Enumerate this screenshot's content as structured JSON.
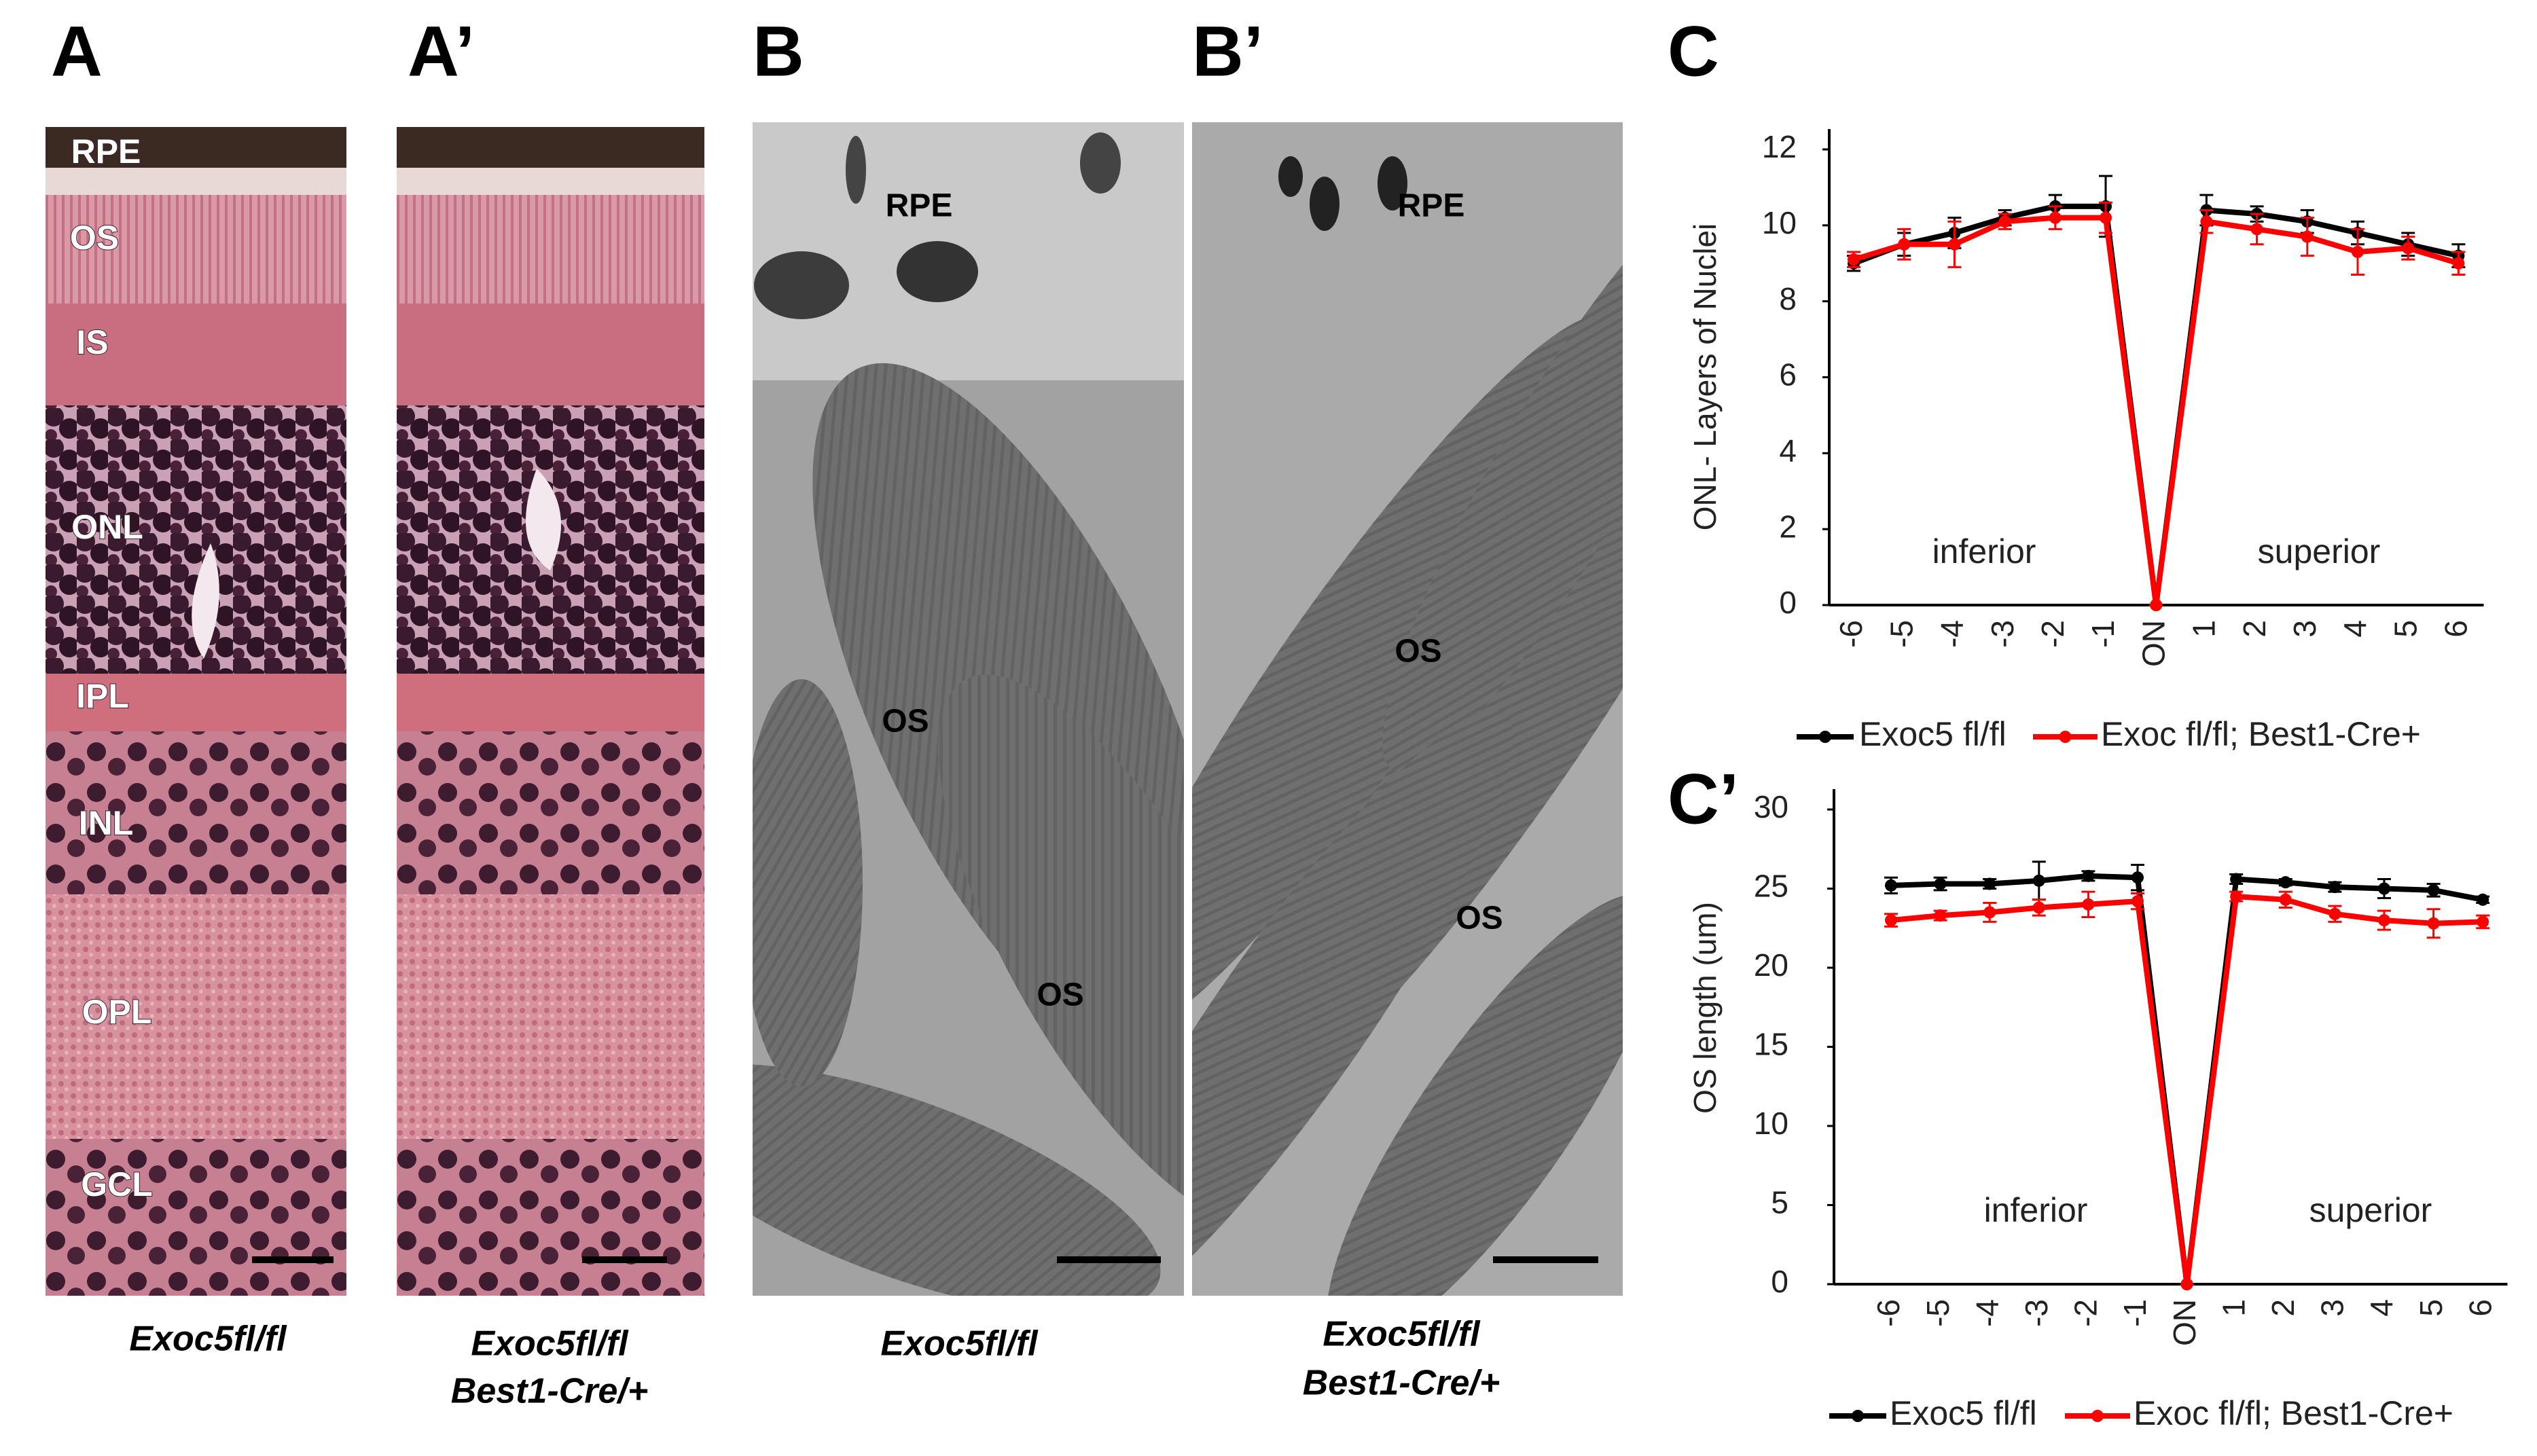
{
  "figure": {
    "panel_labels": [
      "A",
      "A’",
      "B",
      "B’",
      "C",
      "C’"
    ],
    "layer_labels_A": [
      "RPE",
      "OS",
      "IS",
      "ONL",
      "IPL",
      "INL",
      "OPL",
      "GCL"
    ],
    "labels_B": [
      "RPE",
      "OS",
      "OS"
    ],
    "labels_B_prime": [
      "RPE",
      "OS",
      "OS"
    ],
    "caption_A": "Exoc5fl/fl",
    "caption_A_prime": [
      "Exoc5fl/fl",
      "Best1-Cre/+"
    ],
    "caption_B": "Exoc5fl/fl",
    "caption_B_prime": [
      "Exoc5fl/fl",
      "Best1-Cre/+"
    ]
  },
  "chart_data": [
    {
      "type": "line",
      "ylabel": "ONL- Layers of Nuclei",
      "categories": [
        "-6",
        "-5",
        "-4",
        "-3",
        "-2",
        "-1",
        "ON",
        "1",
        "2",
        "3",
        "4",
        "5",
        "6"
      ],
      "annotations": [
        "inferior",
        "superior"
      ],
      "ylim": [
        0,
        12
      ],
      "yticks": [
        0,
        2,
        4,
        6,
        8,
        10,
        12
      ],
      "series": [
        {
          "name": "Exoc5 fl/fl",
          "color": "#000000",
          "values": [
            9.0,
            9.5,
            9.8,
            10.2,
            10.5,
            10.5,
            0,
            10.4,
            10.3,
            10.1,
            9.8,
            9.5,
            9.2
          ],
          "errors": [
            0.2,
            0.3,
            0.4,
            0.2,
            0.3,
            0.8,
            0,
            0.4,
            0.2,
            0.3,
            0.3,
            0.3,
            0.3
          ]
        },
        {
          "name": "Exoc fl/fl; Best1-Cre+",
          "color": "#ff0000",
          "values": [
            9.1,
            9.5,
            9.5,
            10.1,
            10.2,
            10.2,
            0,
            10.1,
            9.9,
            9.7,
            9.3,
            9.4,
            9.0
          ],
          "errors": [
            0.2,
            0.4,
            0.6,
            0.2,
            0.3,
            0.4,
            0,
            0.3,
            0.4,
            0.5,
            0.6,
            0.3,
            0.3
          ]
        }
      ]
    },
    {
      "type": "line",
      "ylabel": "OS length (um)",
      "categories": [
        "-6",
        "-5",
        "-4",
        "-3",
        "-2",
        "-1",
        "ON",
        "1",
        "2",
        "3",
        "4",
        "5",
        "6"
      ],
      "annotations": [
        "inferior",
        "superior"
      ],
      "ylim": [
        0,
        30
      ],
      "yticks": [
        0,
        5,
        10,
        15,
        20,
        25,
        30
      ],
      "series": [
        {
          "name": "Exoc5 fl/fl",
          "color": "#000000",
          "values": [
            25.2,
            25.3,
            25.3,
            25.5,
            25.8,
            25.7,
            0,
            25.6,
            25.4,
            25.1,
            25.0,
            24.9,
            24.3
          ],
          "errors": [
            0.5,
            0.4,
            0.3,
            1.2,
            0.3,
            0.8,
            0,
            0.3,
            0.2,
            0.3,
            0.6,
            0.4,
            0.2
          ]
        },
        {
          "name": "Exoc fl/fl; Best1-Cre+",
          "color": "#ff0000",
          "values": [
            23.0,
            23.3,
            23.5,
            23.8,
            24.0,
            24.2,
            0,
            24.5,
            24.3,
            23.4,
            23.0,
            22.8,
            22.9
          ],
          "errors": [
            0.4,
            0.3,
            0.6,
            0.5,
            0.8,
            0.5,
            0,
            0.3,
            0.5,
            0.5,
            0.6,
            0.9,
            0.4
          ]
        }
      ]
    }
  ]
}
